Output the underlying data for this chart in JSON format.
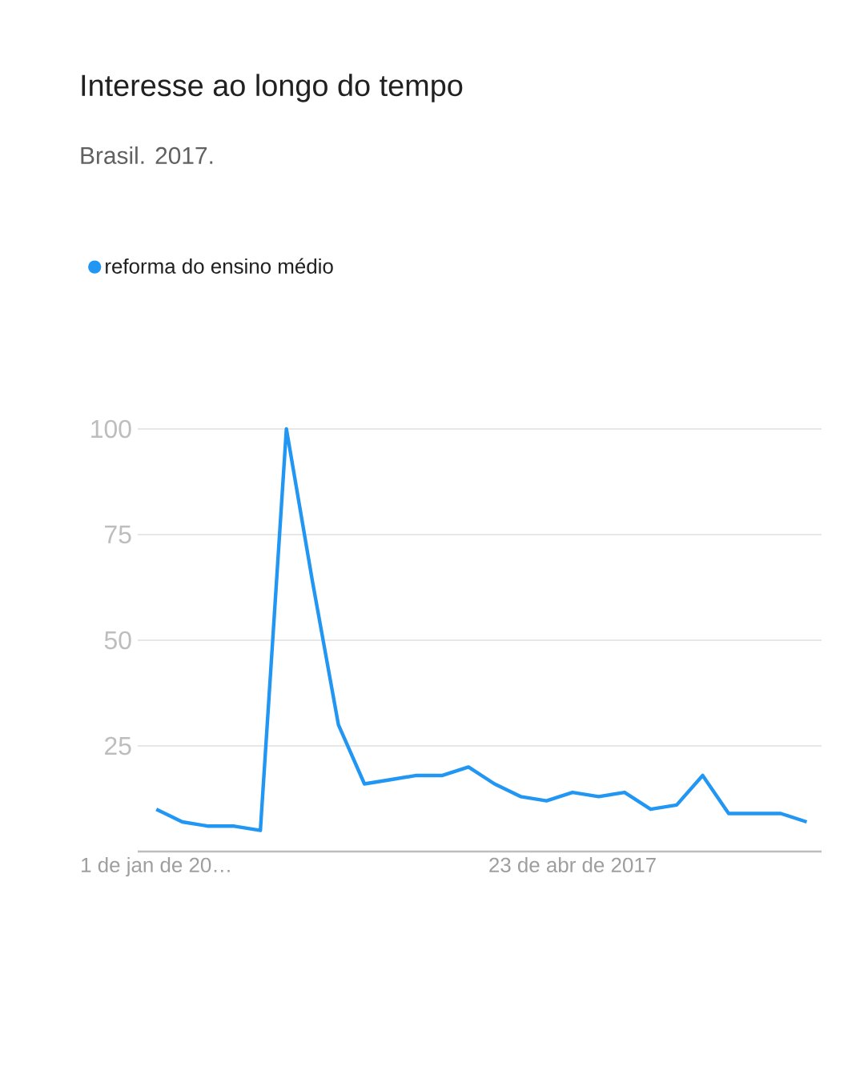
{
  "chart_data": {
    "type": "line",
    "title": "Interesse ao longo do tempo",
    "subtitle": "Brasil. 2017.",
    "x": [
      "2017-01-01",
      "2017-01-08",
      "2017-01-15",
      "2017-01-22",
      "2017-01-29",
      "2017-02-05",
      "2017-02-12",
      "2017-02-19",
      "2017-02-26",
      "2017-03-05",
      "2017-03-12",
      "2017-03-19",
      "2017-03-26",
      "2017-04-02",
      "2017-04-09",
      "2017-04-16",
      "2017-04-23",
      "2017-04-30",
      "2017-05-07",
      "2017-05-14",
      "2017-05-21",
      "2017-05-28",
      "2017-06-04",
      "2017-06-11",
      "2017-06-18",
      "2017-06-25"
    ],
    "series": [
      {
        "name": "reforma do ensino médio",
        "color": "#2196f3",
        "values": [
          10,
          7,
          6,
          6,
          5,
          100,
          64,
          30,
          16,
          17,
          18,
          18,
          20,
          16,
          13,
          12,
          14,
          13,
          14,
          10,
          11,
          18,
          9,
          9,
          9,
          7
        ]
      }
    ],
    "xlim": [
      "2016-12-27",
      "2017-06-29"
    ],
    "xticks": [
      {
        "value": "2017-01-01",
        "label": "1 de jan de 20…"
      },
      {
        "value": "2017-04-23",
        "label": "23 de abr de 2017"
      }
    ],
    "ylim": [
      0,
      100
    ],
    "yticks": [
      25,
      50,
      75,
      100
    ],
    "grid": "y",
    "legend": "top left",
    "marker": "none",
    "line_style": "solid"
  }
}
